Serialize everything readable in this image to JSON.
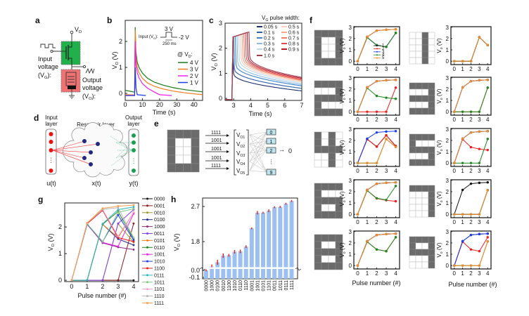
{
  "panel_labels": {
    "a": "a",
    "b": "b",
    "c": "c",
    "d": "d",
    "e": "e",
    "f": "f",
    "g": "g",
    "h": "h"
  },
  "panel_a": {
    "vd": {
      "main": "V",
      "sub": "D"
    },
    "input_lines": [
      "Input",
      "voltage"
    ],
    "input_sym": {
      "open": "(V",
      "sub": "G",
      "close": "):"
    },
    "output_lines": [
      "Output",
      "voltage"
    ],
    "output_sym": {
      "open": "(V",
      "sub": "O",
      "close": "):"
    },
    "colors": {
      "transistor_box": "#22b04a",
      "memristor_box": "#f07272"
    }
  },
  "panel_d": {
    "input_layer": [
      "Input",
      "layer"
    ],
    "reservoir_layer": "Reservoir layer",
    "output_layer": [
      "Output",
      "layer"
    ],
    "u": "u(t)",
    "x": "x(t)",
    "y": "y(t)",
    "dots": "⋮"
  },
  "panel_e": {
    "rows": [
      "1111",
      "1001",
      "1001",
      "1001",
      "1111"
    ],
    "vo_labels": [
      {
        "main": "V",
        "sub": "O1"
      },
      {
        "main": "V",
        "sub": "O2"
      },
      {
        "main": "V",
        "sub": "O3"
      },
      {
        "main": "V",
        "sub": "O4"
      },
      {
        "main": "V",
        "sub": "O5"
      }
    ],
    "outputs": [
      "0",
      "1",
      "2",
      "9"
    ],
    "output_dots": "⋮",
    "result_arrow": "→",
    "result": "0"
  },
  "chart_data": [
    {
      "panel": "b",
      "type": "line",
      "xlabel": "Time (s)",
      "ylabel": [
        {
          "t": "V"
        },
        {
          "t": "O",
          "sub": true
        },
        {
          "t": " (V)"
        }
      ],
      "xlim": [
        0,
        45
      ],
      "ylim": [
        -0.27,
        2.81
      ],
      "xticks": [
        "0",
        "10",
        "20",
        "30",
        "40"
      ],
      "xtick_values": [
        0,
        10,
        20,
        30,
        40
      ],
      "yticks": [
        "0",
        "1",
        "2"
      ],
      "ytick_values": [
        0,
        1,
        2
      ],
      "inset": {
        "input": [
          {
            "t": "Input (V"
          },
          {
            "t": "G",
            "sub": true
          },
          {
            "t": "):"
          }
        ],
        "high": "3 V",
        "low": "-2 V",
        "width": "250 ms"
      },
      "legend_title": [
        {
          "t": "@ V"
        },
        {
          "t": "D",
          "sub": true
        },
        {
          "t": ":"
        }
      ],
      "legend_position": "right",
      "series": [
        {
          "name": "4 V",
          "color": "#1a7a1a",
          "points": [
            [
              0,
              0.12
            ],
            [
              5.5,
              0.05
            ],
            [
              5.8,
              2.55
            ],
            [
              6.2,
              1.6
            ],
            [
              7,
              1.2
            ],
            [
              8,
              1.0
            ],
            [
              10,
              0.78
            ],
            [
              13,
              0.58
            ],
            [
              17,
              0.43
            ],
            [
              22,
              0.32
            ],
            [
              28,
              0.22
            ],
            [
              35,
              0.14
            ],
            [
              45,
              0.06
            ]
          ]
        },
        {
          "name": "3 V",
          "color": "#f07d1e",
          "points": [
            [
              0,
              -0.05
            ],
            [
              5.5,
              -0.06
            ],
            [
              5.8,
              2.45
            ],
            [
              6.2,
              1.4
            ],
            [
              7,
              1.0
            ],
            [
              8,
              0.8
            ],
            [
              10,
              0.58
            ],
            [
              13,
              0.4
            ],
            [
              17,
              0.27
            ],
            [
              22,
              0.17
            ],
            [
              28,
              0.09
            ],
            [
              35,
              0.02
            ],
            [
              45,
              -0.05
            ]
          ]
        },
        {
          "name": "2 V",
          "color": "#f21ef0",
          "points": [
            [
              0,
              -0.08
            ],
            [
              5.5,
              -0.08
            ],
            [
              5.8,
              2.0
            ],
            [
              6.2,
              1.1
            ],
            [
              7,
              0.8
            ],
            [
              8,
              0.6
            ],
            [
              10,
              0.38
            ],
            [
              13,
              0.2
            ],
            [
              17,
              0.05
            ],
            [
              20,
              -0.05
            ],
            [
              27,
              -0.08
            ]
          ]
        },
        {
          "name": "1 V",
          "color": "#1e3cf0",
          "points": [
            [
              0,
              -0.08
            ],
            [
              5.5,
              -0.08
            ],
            [
              5.8,
              1.0
            ],
            [
              6.3,
              0.2
            ],
            [
              7,
              -0.05
            ],
            [
              12,
              -0.08
            ]
          ]
        }
      ]
    },
    {
      "panel": "c",
      "type": "line",
      "xlabel": "Time (s)",
      "ylabel": [
        {
          "t": "V"
        },
        {
          "t": "O",
          "sub": true
        },
        {
          "t": " (V)"
        }
      ],
      "xlim": [
        2.5,
        7
      ],
      "ylim": [
        -0.08,
        3
      ],
      "xticks": [
        "3",
        "4",
        "5",
        "6",
        "7"
      ],
      "xtick_values": [
        3,
        4,
        5,
        6,
        7
      ],
      "yticks": [
        "0",
        "1",
        "2",
        "3"
      ],
      "ytick_values": [
        0,
        1,
        2,
        3
      ],
      "legend_title": [
        {
          "t": "V"
        },
        {
          "t": "G",
          "sub": true
        },
        {
          "t": " pulse width:"
        }
      ],
      "legend_position": "top-right",
      "series": [
        {
          "name": "0.05 s",
          "width_s": 0.05,
          "color": "#1b2f6e",
          "peak_V": 1.6,
          "after_pulse_V": 1.0,
          "V_at_7s": 0.3
        },
        {
          "name": "0.1 s",
          "width_s": 0.1,
          "color": "#2a5fae",
          "peak_V": 2.45,
          "after_pulse_V": 1.2,
          "V_at_7s": 0.4
        },
        {
          "name": "0.2 s",
          "width_s": 0.2,
          "color": "#3c82c8",
          "peak_V": 2.48,
          "after_pulse_V": 1.35,
          "V_at_7s": 0.5
        },
        {
          "name": "0.3 s",
          "width_s": 0.3,
          "color": "#8cbbe2",
          "peak_V": 2.5,
          "after_pulse_V": 1.45,
          "V_at_7s": 0.55
        },
        {
          "name": "0.4 s",
          "width_s": 0.4,
          "color": "#bcd9f0",
          "peak_V": 2.52,
          "after_pulse_V": 1.55,
          "V_at_7s": 0.6
        },
        {
          "name": "0.5 s",
          "width_s": 0.5,
          "color": "#f9cbb8",
          "peak_V": 2.54,
          "after_pulse_V": 1.6,
          "V_at_7s": 0.65
        },
        {
          "name": "0.6 s",
          "width_s": 0.6,
          "color": "#f8a98f",
          "peak_V": 2.56,
          "after_pulse_V": 1.63,
          "V_at_7s": 0.7
        },
        {
          "name": "0.7 s",
          "width_s": 0.7,
          "color": "#f07a66",
          "peak_V": 2.58,
          "after_pulse_V": 1.65,
          "V_at_7s": 0.73
        },
        {
          "name": "0.8 s",
          "width_s": 0.8,
          "color": "#de4c4c",
          "peak_V": 2.61,
          "after_pulse_V": 1.67,
          "V_at_7s": 0.76
        },
        {
          "name": "0.9 s",
          "width_s": 0.9,
          "color": "#b51a28",
          "peak_V": 2.63,
          "after_pulse_V": 1.68,
          "V_at_7s": 0.8
        },
        {
          "name": "1.0 s",
          "width_s": 1.0,
          "color": "#9e3a4e",
          "peak_V": 2.65,
          "after_pulse_V": 1.7,
          "V_at_7s": 0.84
        }
      ]
    },
    {
      "panel": "g",
      "type": "line",
      "xlabel": "Pulse number (#)",
      "ylabel": [
        {
          "t": "V"
        },
        {
          "t": "O",
          "sub": true
        },
        {
          "t": " (V)"
        }
      ],
      "xlim": [
        -0.45,
        4.32
      ],
      "ylim": [
        -0.05,
        2.9
      ],
      "x": [
        0,
        1,
        2,
        3,
        4
      ],
      "xticks": [
        "0",
        "1",
        "2",
        "3",
        "4"
      ],
      "yticks": [
        "0",
        "1",
        "2"
      ],
      "ytick_values": [
        0,
        1,
        2
      ],
      "legend_position": "right",
      "series": [
        {
          "name": "0000",
          "color": "#111111",
          "values": [
            0,
            0,
            0,
            0,
            0
          ]
        },
        {
          "name": "0001",
          "color": "#8b1c1c",
          "values": [
            0,
            0,
            0,
            0,
            2.13
          ]
        },
        {
          "name": "0010",
          "color": "#9c9a2a",
          "values": [
            0,
            0,
            0,
            2.12,
            1.42
          ]
        },
        {
          "name": "0100",
          "color": "#1c2a8c",
          "values": [
            0,
            0,
            2.1,
            1.55,
            1.32
          ]
        },
        {
          "name": "1000",
          "color": "#8a2a7c",
          "values": [
            0,
            2.1,
            1.4,
            1.24,
            1.15
          ]
        },
        {
          "name": "0011",
          "color": "#8a3cf0",
          "values": [
            0,
            0,
            0,
            2.13,
            2.65
          ]
        },
        {
          "name": "0101",
          "color": "#f08020",
          "values": [
            0,
            0,
            2.1,
            1.6,
            2.55
          ]
        },
        {
          "name": "0110",
          "color": "#1c8a1c",
          "values": [
            0,
            0,
            2.1,
            2.58,
            1.55
          ]
        },
        {
          "name": "1001",
          "color": "#f020e8",
          "values": [
            0,
            2.1,
            1.42,
            1.27,
            2.5
          ]
        },
        {
          "name": "1010",
          "color": "#1c3cf0",
          "values": [
            0,
            2.1,
            1.45,
            2.45,
            1.5
          ]
        },
        {
          "name": "1100",
          "color": "#f01c1c",
          "values": [
            0,
            2.12,
            2.62,
            1.6,
            1.45
          ]
        },
        {
          "name": "0111",
          "color": "#30b4c4",
          "values": [
            0,
            0,
            2.12,
            2.65,
            2.75
          ]
        },
        {
          "name": "1011",
          "color": "#80c880",
          "values": [
            0,
            2.12,
            1.45,
            2.55,
            2.68
          ]
        },
        {
          "name": "1101",
          "color": "#f8a0cc",
          "values": [
            0,
            2.15,
            2.65,
            1.65,
            2.55
          ]
        },
        {
          "name": "1110",
          "color": "#b4b4b4",
          "values": [
            0,
            2.15,
            2.66,
            2.72,
            1.6
          ]
        },
        {
          "name": "1111",
          "color": "#f8a050",
          "values": [
            0,
            2.15,
            2.7,
            2.78,
            2.82
          ]
        }
      ]
    },
    {
      "panel": "h",
      "type": "bar",
      "ylabel": [
        {
          "t": "V"
        },
        {
          "t": "O",
          "sub": true
        },
        {
          "t": " (V)"
        }
      ],
      "yticks": [
        "2.7",
        "1.8",
        "0.0",
        "-0.1"
      ],
      "ytick_values": [
        2.7,
        1.8,
        0.0,
        -0.1
      ],
      "axis_break": true,
      "bar_color": "#9dc0f2",
      "error_color": "#f01c1c",
      "categories": [
        "0000",
        "1000",
        "0100",
        "0010",
        "1100",
        "1010",
        "0110",
        "1110",
        "0001",
        "1001",
        "0101",
        "1101",
        "0011",
        "1011",
        "0111",
        "1111"
      ],
      "values": [
        0.0,
        1.16,
        1.27,
        1.44,
        1.45,
        1.54,
        1.55,
        1.67,
        2.14,
        2.54,
        2.54,
        2.59,
        2.68,
        2.69,
        2.77,
        2.84
      ],
      "errors": [
        0.01,
        0.04,
        0.05,
        0.04,
        0.02,
        0.03,
        0.03,
        0.02,
        0.01,
        0.03,
        0.01,
        0.02,
        0.01,
        0.01,
        0.01,
        0.01
      ]
    },
    {
      "panel": "f",
      "type": "line",
      "xlabel": "Pulse number (#)",
      "ylabel": [
        {
          "t": "V"
        },
        {
          "t": "o",
          "sub": true
        },
        {
          "t": " (V)"
        }
      ],
      "xlim": [
        -0.4,
        4.4
      ],
      "ylim": [
        -0.3,
        3.05
      ],
      "xticks": [
        "0",
        "1",
        "2",
        "3",
        "4"
      ],
      "yticks": [
        "0",
        "1",
        "2",
        "3"
      ],
      "legend": [
        "1",
        "2",
        "3",
        "4",
        "5"
      ],
      "row_colors": [
        "#111111",
        "#f01c1c",
        "#1c3cf0",
        "#1c8a1c",
        "#f08a28"
      ],
      "pixel_colors": {
        "on": "#6b6b6b",
        "off": "#ffffff"
      },
      "series_source": "g",
      "digits": [
        {
          "digit": "0",
          "rows": [
            "1111",
            "1001",
            "1001",
            "1001",
            "1111"
          ]
        },
        {
          "digit": "1",
          "rows": [
            "0010",
            "0010",
            "0010",
            "0010",
            "0010"
          ]
        },
        {
          "digit": "2",
          "rows": [
            "1111",
            "0001",
            "1111",
            "1000",
            "1111"
          ]
        },
        {
          "digit": "3",
          "rows": [
            "1111",
            "0001",
            "1111",
            "0001",
            "1111"
          ]
        },
        {
          "digit": "4",
          "rows": [
            "1010",
            "1010",
            "1111",
            "0010",
            "0010"
          ]
        },
        {
          "digit": "5",
          "rows": [
            "1111",
            "1000",
            "1111",
            "0001",
            "1111"
          ]
        },
        {
          "digit": "6",
          "rows": [
            "1111",
            "1000",
            "1111",
            "1001",
            "1111"
          ]
        },
        {
          "digit": "7",
          "rows": [
            "1111",
            "0001",
            "0001",
            "0001",
            "0001"
          ]
        },
        {
          "digit": "8",
          "rows": [
            "1111",
            "1001",
            "1111",
            "1001",
            "1111"
          ]
        },
        {
          "digit": "9",
          "rows": [
            "1111",
            "1001",
            "1111",
            "0001",
            "0001"
          ]
        }
      ]
    }
  ]
}
